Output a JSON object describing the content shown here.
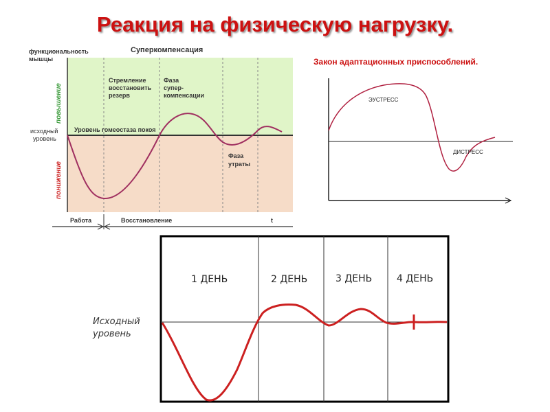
{
  "title": "Реакция на физическую нагрузку.",
  "colors": {
    "title": "#cc1111",
    "curve": "#a03060",
    "band_up": "#e0f5c8",
    "band_down": "#f6dcc8",
    "label_up": "#3a9a3a",
    "label_down": "#cc2222",
    "adaptation_curve": "#b02040",
    "days_curve": "#cc2020"
  },
  "supercompensation": {
    "y_axis_label_line1": "функциональность",
    "y_axis_label_line2": "мышцы",
    "top_label": "Суперкомпенсация",
    "raise_label": "повышение",
    "lower_label": "понижение",
    "baseline_label_line1": "исходный",
    "baseline_label_line2": "уровень",
    "homeostasis_label": "Уровень гомеостаза покоя",
    "phase_restore_line1": "Стремление",
    "phase_restore_line2": "восстановить",
    "phase_restore_line3": "резерв",
    "phase_super_line1": "Фаза",
    "phase_super_line2": "супер-",
    "phase_super_line3": "компенсации",
    "phase_loss_line1": "Фаза",
    "phase_loss_line2": "утраты",
    "axis_work": "Работа",
    "axis_recovery": "Восстановление",
    "axis_t": "t"
  },
  "adaptation": {
    "title": "Закон адаптационных приспособлений.",
    "eustress": "ЭУСТРЕСС",
    "distress": "ДИСТРЕСС"
  },
  "days": {
    "baseline_label_line1": "Исходный",
    "baseline_label_line2": "уровень",
    "columns": [
      "1 ДЕНЬ",
      "2 ДЕНЬ",
      "3 ДЕНЬ",
      "4 ДЕНЬ"
    ]
  }
}
